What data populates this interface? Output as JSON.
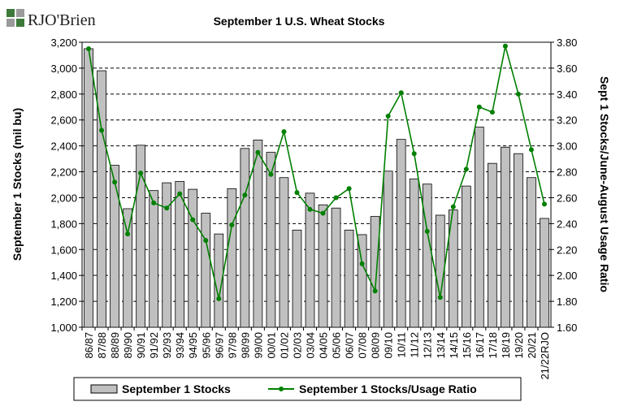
{
  "logo": {
    "brand_text": "RJO'Brien",
    "colors": [
      "#3d7a3a",
      "#9b9b9b"
    ]
  },
  "chart_data": {
    "type": "bar",
    "title": "September 1 U.S. Wheat Stocks",
    "ylabel": "September 1 Stocks (mil bu)",
    "y2label": "Sept 1 Stocks/June-August Usage Ratio",
    "ylim": [
      1000,
      3200
    ],
    "y2lim": [
      1.6,
      3.8
    ],
    "yticks": [
      "1,000",
      "1,200",
      "1,400",
      "1,600",
      "1,800",
      "2,000",
      "2,200",
      "2,400",
      "2,600",
      "2,800",
      "3,000",
      "3,200"
    ],
    "y2ticks": [
      "1.60",
      "1.80",
      "2.00",
      "2.20",
      "2.40",
      "2.60",
      "2.80",
      "3.00",
      "3.20",
      "3.40",
      "3.60",
      "3.80"
    ],
    "grid": "horizontal dashed",
    "legend_position": "bottom",
    "categories": [
      "86/87",
      "87/88",
      "88/89",
      "89/90",
      "90/91",
      "91/92",
      "92/93",
      "93/94",
      "94/95",
      "95/96",
      "96/97",
      "97/98",
      "98/99",
      "99/00",
      "00/01",
      "01/02",
      "02/03",
      "03/04",
      "04/05",
      "05/06",
      "06/07",
      "07/08",
      "08/09",
      "09/10",
      "10/11",
      "11/12",
      "12/13",
      "13/14",
      "14/15",
      "15/16",
      "16/17",
      "17/18",
      "18/19",
      "19/20",
      "20/21",
      "21/22RJO"
    ],
    "series": [
      {
        "name": "September 1 Stocks",
        "kind": "bar",
        "axis": "left",
        "color": "#c0c0c0",
        "values": [
          3150,
          2980,
          2250,
          1915,
          2405,
          2055,
          2115,
          2125,
          2065,
          1880,
          1720,
          2070,
          2380,
          2445,
          2350,
          2155,
          1750,
          2035,
          1945,
          1920,
          1750,
          1715,
          1855,
          2205,
          2450,
          2145,
          2105,
          1865,
          1905,
          2090,
          2545,
          2265,
          2390,
          2340,
          2155,
          1840
        ]
      },
      {
        "name": "September 1 Stocks/Usage Ratio",
        "kind": "line",
        "axis": "right",
        "color": "#008000",
        "values": [
          3.75,
          3.12,
          2.72,
          2.32,
          2.79,
          2.56,
          2.52,
          2.63,
          2.43,
          2.27,
          1.82,
          2.39,
          2.62,
          2.95,
          2.78,
          3.11,
          2.64,
          2.51,
          2.48,
          2.6,
          2.67,
          2.09,
          1.88,
          3.23,
          3.41,
          2.94,
          2.34,
          1.83,
          2.53,
          2.82,
          3.3,
          3.26,
          3.77,
          3.4,
          2.97,
          2.55
        ]
      }
    ]
  }
}
